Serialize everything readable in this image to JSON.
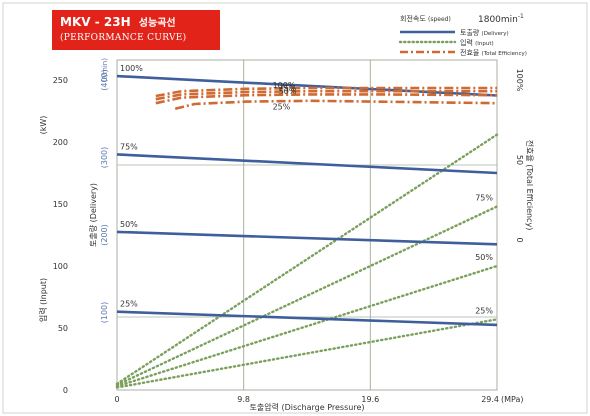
{
  "header": {
    "model": "MKV - 23H",
    "model_kr": "성능곡선",
    "subtitle": "(PERFORMANCE CURVE)"
  },
  "legend": {
    "speed_label": "회전속도",
    "speed_label_en": "(speed)",
    "speed_value": "1800min",
    "speed_superscript": "-1",
    "items": [
      {
        "label": "토출량",
        "sub": "(Delivery)",
        "style": "solid",
        "color": "#3e5f9c"
      },
      {
        "label": "입력",
        "sub": "(Input)",
        "style": "dotted",
        "color": "#7aa05c"
      },
      {
        "label": "전효율",
        "sub": "(Total Efficiency)",
        "style": "dashdot",
        "color": "#cf6a33"
      }
    ]
  },
  "colors": {
    "delivery": "#3e5f9c",
    "input": "#7aa05c",
    "efficiency": "#cf6a33",
    "grid": "#a8b2a0",
    "axis_tick": "#5b78b0"
  },
  "chart_data": {
    "type": "line",
    "xlabel": "토출압력 (Discharge Pressure)",
    "x_unit": "(MPa)",
    "x_ticks": [
      "0",
      "9.8",
      "19.6",
      "29.4"
    ],
    "x_tick_values": [
      0,
      9.8,
      19.6,
      29.4
    ],
    "xlim": [
      0,
      29.4
    ],
    "y_input": {
      "label": "입력 (Input)",
      "unit": "(kW)",
      "ticks": [
        "0",
        "50",
        "100",
        "150",
        "200",
        "250"
      ],
      "tick_values": [
        0,
        50,
        100,
        150,
        200,
        250
      ],
      "lim": [
        0,
        250
      ]
    },
    "y_delivery": {
      "label": "토출량 (Delivery)",
      "unit": "(ℓ/min)",
      "ticks": [
        "(100)",
        "(200)",
        "(300)",
        "(400)"
      ],
      "tick_values": [
        100,
        200,
        300,
        400
      ],
      "lim": [
        0,
        400
      ]
    },
    "y_efficiency": {
      "label": "전효율 (Total Efficiency)",
      "ticks": [
        "0",
        "50",
        "100%"
      ],
      "tick_values": [
        0,
        50,
        100
      ],
      "lim": [
        0,
        100
      ]
    },
    "delivery": [
      {
        "name": "100%",
        "x": [
          0,
          29.4
        ],
        "y": [
          405,
          380
        ]
      },
      {
        "name": "75%",
        "x": [
          0,
          29.4
        ],
        "y": [
          304,
          280
        ]
      },
      {
        "name": "50%",
        "x": [
          0,
          29.4
        ],
        "y": [
          204,
          188
        ]
      },
      {
        "name": "25%",
        "x": [
          0,
          29.4
        ],
        "y": [
          101,
          84
        ]
      }
    ],
    "input": [
      {
        "name": "100%",
        "x": [
          0,
          29.4
        ],
        "y": [
          5,
          206
        ]
      },
      {
        "name": "75%",
        "x": [
          0,
          29.4
        ],
        "y": [
          4,
          148
        ]
      },
      {
        "name": "50%",
        "x": [
          0,
          29.4
        ],
        "y": [
          3,
          100
        ]
      },
      {
        "name": "25%",
        "x": [
          0,
          29.4
        ],
        "y": [
          2,
          57
        ]
      }
    ],
    "efficiency": [
      {
        "name": "100%",
        "x": [
          3,
          5,
          10,
          15,
          20,
          29.4
        ],
        "y": [
          90,
          93,
          94.5,
          95,
          95,
          95
        ]
      },
      {
        "name": "75%",
        "x": [
          3,
          5,
          10,
          15,
          20,
          29.4
        ],
        "y": [
          88,
          91,
          92.5,
          93,
          93,
          93
        ]
      },
      {
        "name": "50%",
        "x": [
          3,
          5,
          10,
          15,
          20,
          29.4
        ],
        "y": [
          85.5,
          89,
          90.5,
          91,
          91,
          90.5
        ]
      },
      {
        "name": "25%",
        "x": [
          4.5,
          6,
          10,
          15,
          20,
          29.4
        ],
        "y": [
          82,
          85,
          86.5,
          87,
          86.5,
          85.5
        ]
      }
    ]
  }
}
